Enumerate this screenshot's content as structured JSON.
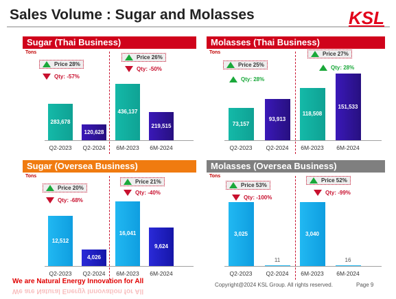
{
  "page": {
    "title": "Sales Volume : Sugar and Molasses",
    "logo_text": "KSL",
    "slogan": "We are Natural Energy Innovation for All",
    "copyright": "Copyright@2024 KSL Group. All rights reserved.",
    "page_number": "Page 9"
  },
  "colors": {
    "header_red": "#d0021b",
    "header_orange": "#f07b10",
    "header_gray": "#7f7f7f",
    "teal": "#14b9a8",
    "navy": "#2a10a0",
    "sky": "#21b8f2",
    "blue": "#1a1ac8"
  },
  "panels": {
    "sugar_thai": {
      "title": "Sugar (Thai Business)",
      "unit": "Tons",
      "q_price": "Price  28%",
      "q_qty": "Qty: -57%",
      "h_price": "Price  26%",
      "h_qty": "Qty: -50%"
    },
    "molasses_thai": {
      "title": "Molasses (Thai Business)",
      "unit": "Tons",
      "q_price": "Price 25%",
      "q_qty": "Qty: 28%",
      "h_price": "Price 27%",
      "h_qty": "Qty: 28%"
    },
    "sugar_oversea": {
      "title": "Sugar (Oversea Business)",
      "unit": "Tons",
      "q_price": "Price  20%",
      "q_qty": "Qty: -68%",
      "h_price": "Price  21%",
      "h_qty": "Qty: -40%"
    },
    "molasses_oversea": {
      "title": "Molasses (Oversea Business)",
      "unit": "Tons",
      "q_price": "Price  53%",
      "q_qty": "Qty: -100%",
      "h_price": "Price  52%",
      "h_qty": "Qty: -99%"
    }
  },
  "chart_data": [
    {
      "type": "bar",
      "title": "Sugar (Thai Business)",
      "ylabel": "Tons",
      "categories": [
        "Q2-2023",
        "Q2-2024",
        "6M-2023",
        "6M-2024"
      ],
      "values": [
        283678,
        120628,
        436137,
        219515
      ],
      "labels": [
        "283,678",
        "120,628",
        "436,137",
        "219,515"
      ]
    },
    {
      "type": "bar",
      "title": "Molasses (Thai Business)",
      "ylabel": "Tons",
      "categories": [
        "Q2-2023",
        "Q2-2024",
        "6M-2023",
        "6M-2024"
      ],
      "values": [
        73157,
        93913,
        118508,
        151533
      ],
      "labels": [
        "73,157",
        "93,913",
        "118,508",
        "151,533"
      ]
    },
    {
      "type": "bar",
      "title": "Sugar (Oversea Business)",
      "ylabel": "Tons",
      "categories": [
        "Q2-2023",
        "Q2-2024",
        "6M-2023",
        "6M-2024"
      ],
      "values": [
        12512,
        4026,
        16041,
        9624
      ],
      "labels": [
        "12,512",
        "4,026",
        "16,041",
        "9,624"
      ]
    },
    {
      "type": "bar",
      "title": "Molasses (Oversea Business)",
      "ylabel": "Tons",
      "categories": [
        "Q2-2023",
        "Q2-2024",
        "6M-2023",
        "6M-2024"
      ],
      "values": [
        3025,
        11,
        3040,
        16
      ],
      "labels": [
        "3,025",
        "11",
        "3,040",
        "16"
      ]
    }
  ]
}
